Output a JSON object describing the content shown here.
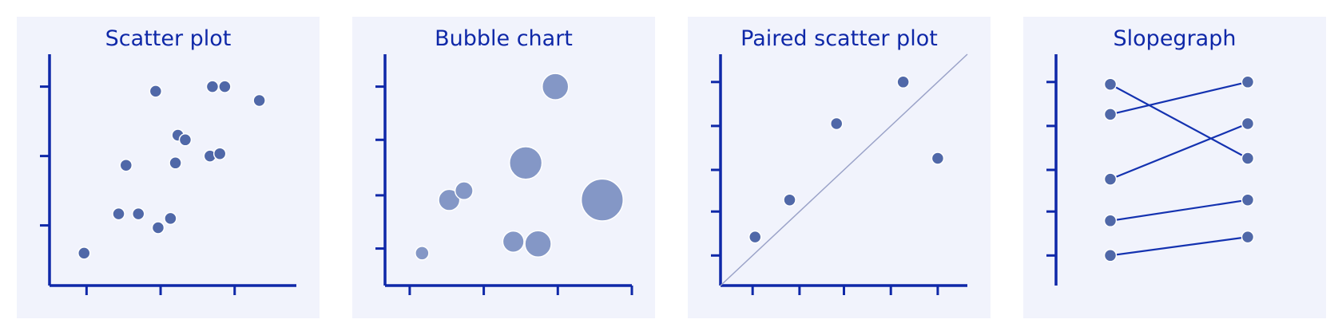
{
  "colors": {
    "axis": "#0f28a8",
    "title": "#0f28a8",
    "panel_background": "#f1f3fc",
    "point": "#5068a8",
    "bubble": "#8497c6",
    "slope_line": "#1432b0",
    "diagonal": "#9aa2c8"
  },
  "chart_data": [
    {
      "type": "scatter",
      "title": "Scatter plot",
      "xlim": [
        0,
        10
      ],
      "ylim": [
        0,
        10
      ],
      "x_ticks": [
        1.5,
        4.5,
        7.5
      ],
      "y_ticks": [
        2.6,
        5.6,
        8.6
      ],
      "points": [
        {
          "x": 1.4,
          "y": 1.4
        },
        {
          "x": 2.8,
          "y": 3.1
        },
        {
          "x": 3.6,
          "y": 3.1
        },
        {
          "x": 4.4,
          "y": 2.5
        },
        {
          "x": 4.9,
          "y": 2.9
        },
        {
          "x": 3.1,
          "y": 5.2
        },
        {
          "x": 5.1,
          "y": 5.3
        },
        {
          "x": 5.2,
          "y": 6.5
        },
        {
          "x": 5.5,
          "y": 6.3
        },
        {
          "x": 6.5,
          "y": 5.6
        },
        {
          "x": 6.9,
          "y": 5.7
        },
        {
          "x": 4.3,
          "y": 8.4
        },
        {
          "x": 6.6,
          "y": 8.6
        },
        {
          "x": 7.1,
          "y": 8.6
        },
        {
          "x": 8.5,
          "y": 8.0
        }
      ]
    },
    {
      "type": "bubble",
      "title": "Bubble chart",
      "xlim": [
        0,
        10
      ],
      "ylim": [
        0,
        10
      ],
      "x_ticks": [
        1,
        4,
        7,
        10
      ],
      "y_ticks": [
        1.6,
        3.9,
        6.3,
        8.6
      ],
      "points": [
        {
          "x": 1.5,
          "y": 1.4,
          "size": 1
        },
        {
          "x": 2.6,
          "y": 3.7,
          "size": 3
        },
        {
          "x": 3.2,
          "y": 4.1,
          "size": 2
        },
        {
          "x": 5.2,
          "y": 1.9,
          "size": 3
        },
        {
          "x": 6.2,
          "y": 1.8,
          "size": 5
        },
        {
          "x": 5.7,
          "y": 5.3,
          "size": 8
        },
        {
          "x": 6.9,
          "y": 8.6,
          "size": 5
        },
        {
          "x": 8.8,
          "y": 3.7,
          "size": 14
        }
      ]
    },
    {
      "type": "scatter",
      "subtype": "paired",
      "title": "Paired scatter plot",
      "xlim": [
        0,
        10
      ],
      "ylim": [
        0,
        10
      ],
      "x_ticks": [
        1.3,
        3.2,
        5.0,
        6.9,
        8.8
      ],
      "y_ticks": [
        1.3,
        3.2,
        5.0,
        6.9,
        8.8
      ],
      "diagonal": true,
      "points": [
        {
          "x": 1.4,
          "y": 2.1
        },
        {
          "x": 2.8,
          "y": 3.7
        },
        {
          "x": 4.7,
          "y": 7.0
        },
        {
          "x": 7.4,
          "y": 8.8
        },
        {
          "x": 8.8,
          "y": 5.5
        }
      ]
    },
    {
      "type": "slopegraph",
      "title": "Slopegraph",
      "ylim": [
        0,
        10
      ],
      "y_ticks": [
        1.3,
        3.2,
        5.0,
        6.9,
        8.8
      ],
      "pairs": [
        {
          "left": 8.7,
          "right": 5.5
        },
        {
          "left": 7.4,
          "right": 8.8
        },
        {
          "left": 4.6,
          "right": 7.0
        },
        {
          "left": 2.8,
          "right": 3.7
        },
        {
          "left": 1.3,
          "right": 2.1
        }
      ]
    }
  ]
}
